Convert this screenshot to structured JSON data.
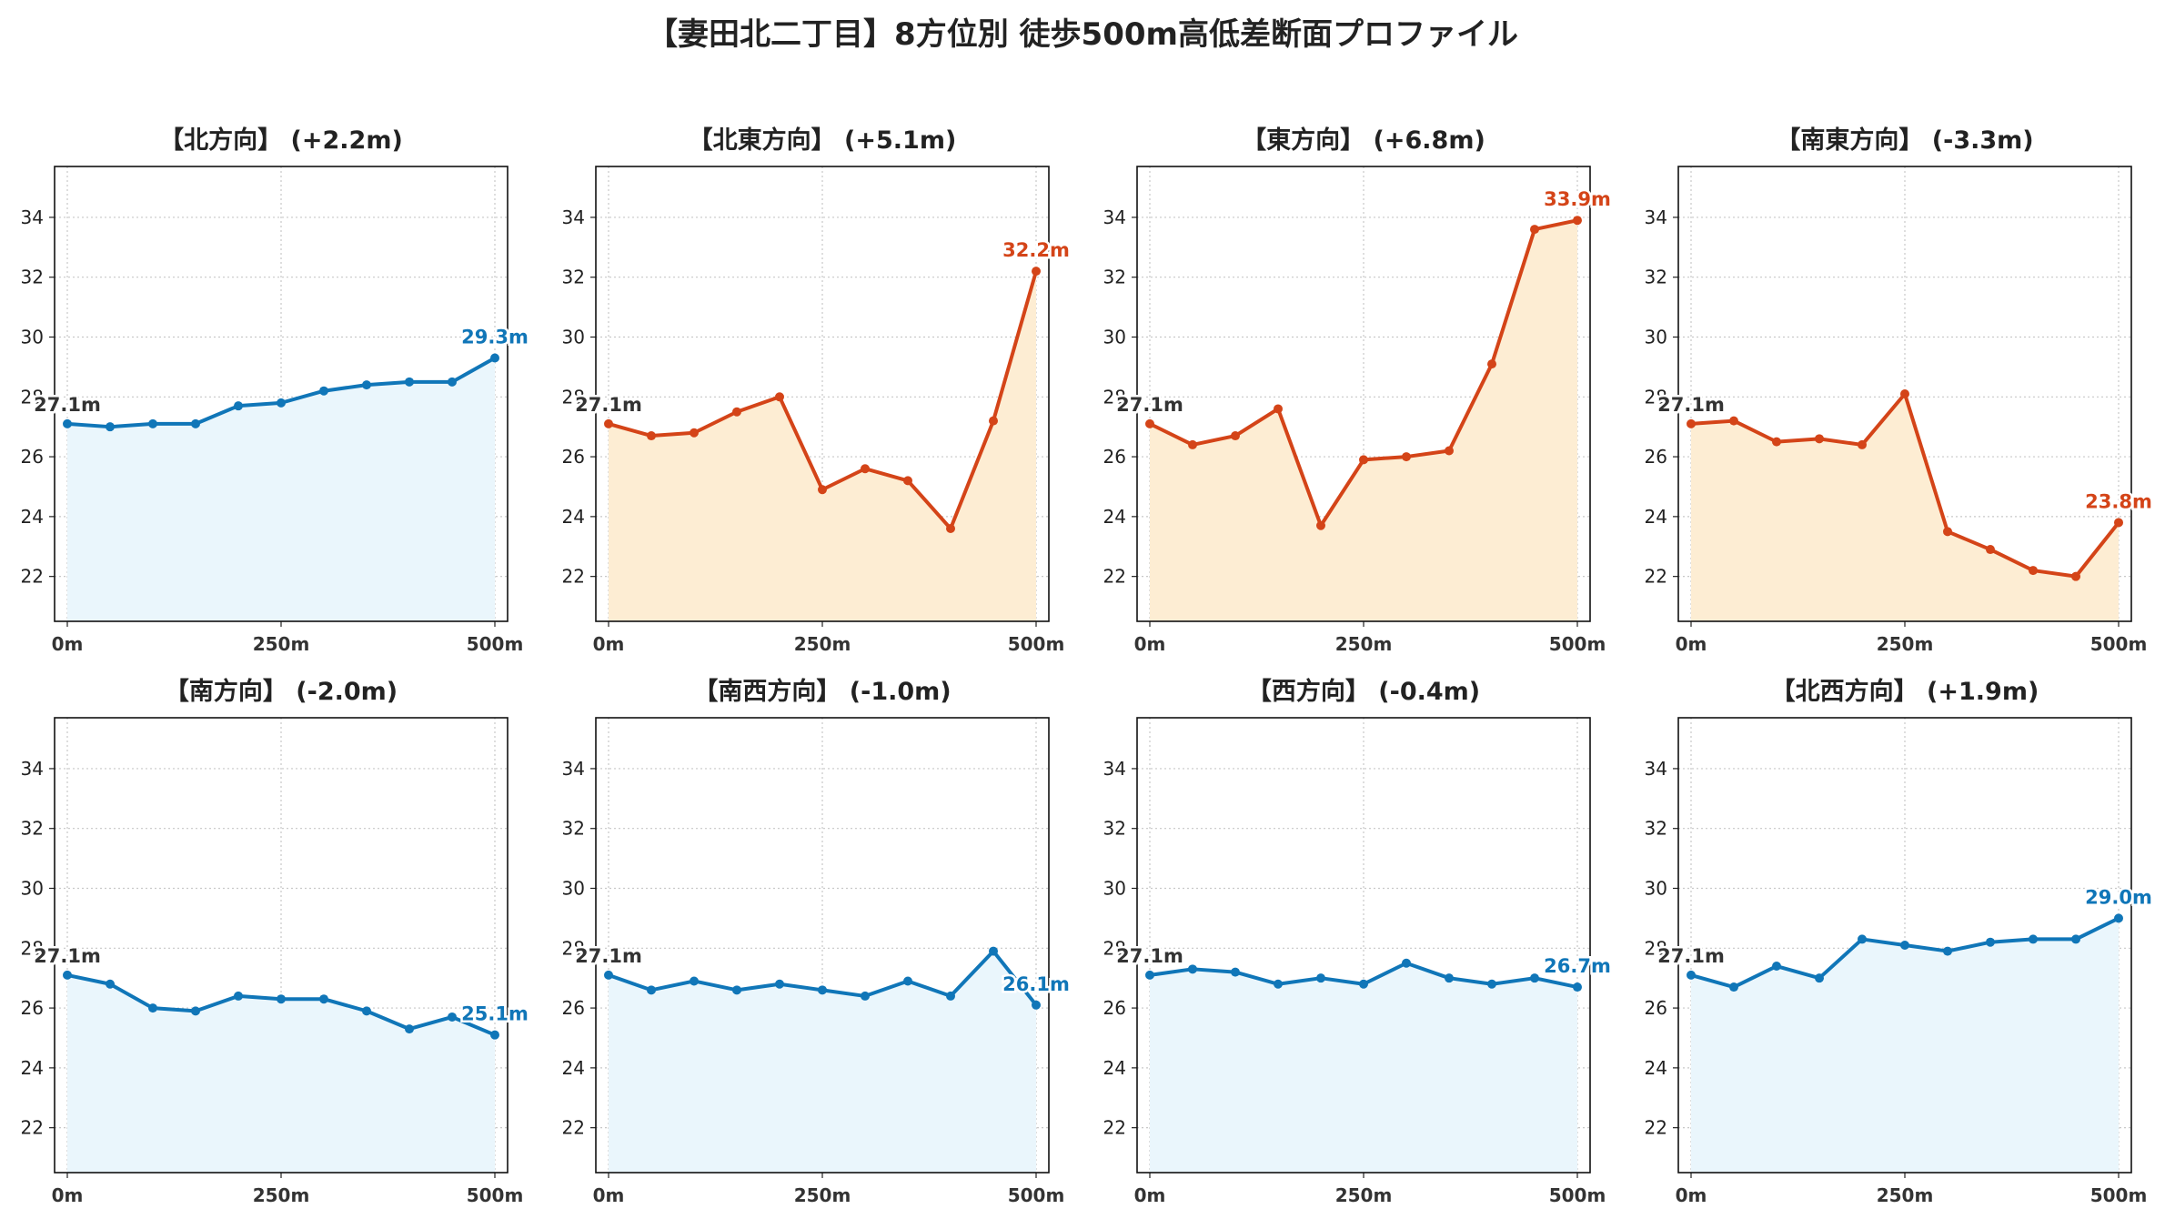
{
  "title": "【妻田北二丁目】8方位別 徒歩500m高低差断面プロファイル",
  "colors": {
    "up_line": "#d44418",
    "up_fill": "#fdedd3",
    "down_line": "#1076b8",
    "down_fill": "#eaf6fc",
    "start_label": "#333333",
    "grid": "#c8c8c8"
  },
  "chart_data": [
    {
      "type": "area",
      "title": "【北方向】 (+2.2m)",
      "trend": "flat",
      "x": [
        0,
        50,
        100,
        150,
        200,
        250,
        300,
        350,
        400,
        450,
        500
      ],
      "values": [
        27.1,
        27.0,
        27.1,
        27.1,
        27.7,
        27.8,
        28.2,
        28.4,
        28.5,
        28.5,
        29.3
      ],
      "start_label": "27.1m",
      "end_label": "29.3m",
      "xticks": [
        "0m",
        "250m",
        "500m"
      ],
      "yticks": [
        22,
        24,
        26,
        28,
        30,
        32,
        34
      ],
      "ylim": [
        20.5,
        35.7
      ],
      "grid": true
    },
    {
      "type": "area",
      "title": "【北東方向】 (+5.1m)",
      "trend": "up",
      "x": [
        0,
        50,
        100,
        150,
        200,
        250,
        300,
        350,
        400,
        450,
        500
      ],
      "values": [
        27.1,
        26.7,
        26.8,
        27.5,
        28.0,
        24.9,
        25.6,
        25.2,
        23.6,
        27.2,
        32.2
      ],
      "start_label": "27.1m",
      "end_label": "32.2m",
      "xticks": [
        "0m",
        "250m",
        "500m"
      ],
      "yticks": [
        22,
        24,
        26,
        28,
        30,
        32,
        34
      ],
      "ylim": [
        20.5,
        35.7
      ],
      "grid": true
    },
    {
      "type": "area",
      "title": "【東方向】 (+6.8m)",
      "trend": "up",
      "x": [
        0,
        50,
        100,
        150,
        200,
        250,
        300,
        350,
        400,
        450,
        500
      ],
      "values": [
        27.1,
        26.4,
        26.7,
        27.6,
        23.7,
        25.9,
        26.0,
        26.2,
        29.1,
        33.6,
        33.9
      ],
      "start_label": "27.1m",
      "end_label": "33.9m",
      "xticks": [
        "0m",
        "250m",
        "500m"
      ],
      "yticks": [
        22,
        24,
        26,
        28,
        30,
        32,
        34
      ],
      "ylim": [
        20.5,
        35.7
      ],
      "grid": true
    },
    {
      "type": "area",
      "title": "【南東方向】 (-3.3m)",
      "trend": "up",
      "x": [
        0,
        50,
        100,
        150,
        200,
        250,
        300,
        350,
        400,
        450,
        500
      ],
      "values": [
        27.1,
        27.2,
        26.5,
        26.6,
        26.4,
        28.1,
        23.5,
        22.9,
        22.2,
        22.0,
        23.8
      ],
      "start_label": "27.1m",
      "end_label": "23.8m",
      "xticks": [
        "0m",
        "250m",
        "500m"
      ],
      "yticks": [
        22,
        24,
        26,
        28,
        30,
        32,
        34
      ],
      "ylim": [
        20.5,
        35.7
      ],
      "grid": true
    },
    {
      "type": "area",
      "title": "【南方向】 (-2.0m)",
      "trend": "flat",
      "x": [
        0,
        50,
        100,
        150,
        200,
        250,
        300,
        350,
        400,
        450,
        500
      ],
      "values": [
        27.1,
        26.8,
        26.0,
        25.9,
        26.4,
        26.3,
        26.3,
        25.9,
        25.3,
        25.7,
        25.1
      ],
      "start_label": "27.1m",
      "end_label": "25.1m",
      "xticks": [
        "0m",
        "250m",
        "500m"
      ],
      "yticks": [
        22,
        24,
        26,
        28,
        30,
        32,
        34
      ],
      "ylim": [
        20.5,
        35.7
      ],
      "grid": true
    },
    {
      "type": "area",
      "title": "【南西方向】 (-1.0m)",
      "trend": "flat",
      "x": [
        0,
        50,
        100,
        150,
        200,
        250,
        300,
        350,
        400,
        450,
        500
      ],
      "values": [
        27.1,
        26.6,
        26.9,
        26.6,
        26.8,
        26.6,
        26.4,
        26.9,
        26.4,
        27.9,
        26.1
      ],
      "start_label": "27.1m",
      "end_label": "26.1m",
      "xticks": [
        "0m",
        "250m",
        "500m"
      ],
      "yticks": [
        22,
        24,
        26,
        28,
        30,
        32,
        34
      ],
      "ylim": [
        20.5,
        35.7
      ],
      "grid": true
    },
    {
      "type": "area",
      "title": "【西方向】 (-0.4m)",
      "trend": "flat",
      "x": [
        0,
        50,
        100,
        150,
        200,
        250,
        300,
        350,
        400,
        450,
        500
      ],
      "values": [
        27.1,
        27.3,
        27.2,
        26.8,
        27.0,
        26.8,
        27.5,
        27.0,
        26.8,
        27.0,
        26.7
      ],
      "start_label": "27.1m",
      "end_label": "26.7m",
      "xticks": [
        "0m",
        "250m",
        "500m"
      ],
      "yticks": [
        22,
        24,
        26,
        28,
        30,
        32,
        34
      ],
      "ylim": [
        20.5,
        35.7
      ],
      "grid": true
    },
    {
      "type": "area",
      "title": "【北西方向】 (+1.9m)",
      "trend": "flat",
      "x": [
        0,
        50,
        100,
        150,
        200,
        250,
        300,
        350,
        400,
        450,
        500
      ],
      "values": [
        27.1,
        26.7,
        27.4,
        27.0,
        28.3,
        28.1,
        27.9,
        28.2,
        28.3,
        28.3,
        29.0
      ],
      "start_label": "27.1m",
      "end_label": "29.0m",
      "xticks": [
        "0m",
        "250m",
        "500m"
      ],
      "yticks": [
        22,
        24,
        26,
        28,
        30,
        32,
        34
      ],
      "ylim": [
        20.5,
        35.7
      ],
      "grid": true
    }
  ]
}
